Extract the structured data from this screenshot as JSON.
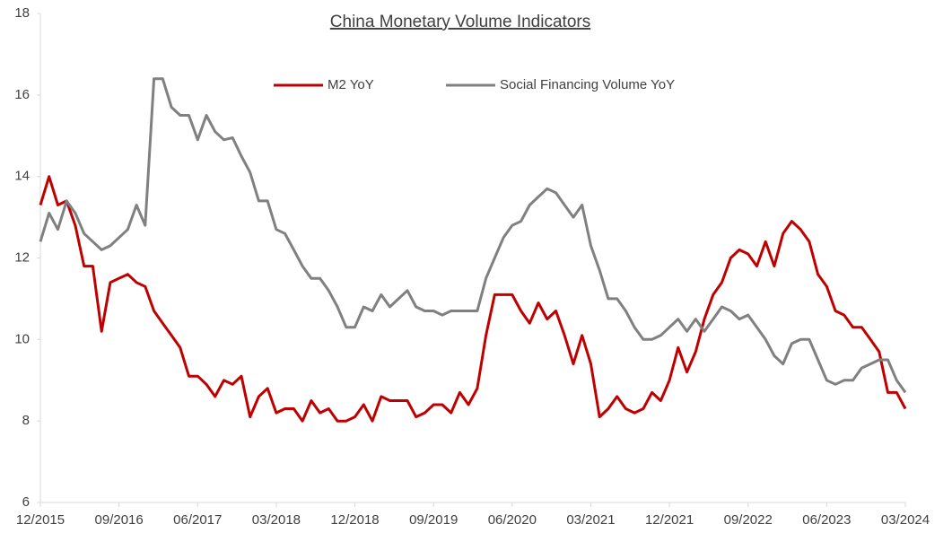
{
  "chart_data": {
    "type": "line",
    "title": "China Monetary Volume Indicators",
    "categories": [
      "12/2015",
      null,
      null,
      null,
      null,
      null,
      null,
      null,
      null,
      "09/2016",
      null,
      null,
      null,
      null,
      null,
      null,
      null,
      null,
      "06/2017",
      null,
      null,
      null,
      null,
      null,
      null,
      null,
      null,
      "03/2018",
      null,
      null,
      null,
      null,
      null,
      null,
      null,
      null,
      "12/2018",
      null,
      null,
      null,
      null,
      null,
      null,
      null,
      null,
      "09/2019",
      null,
      null,
      null,
      null,
      null,
      null,
      null,
      null,
      "06/2020",
      null,
      null,
      null,
      null,
      null,
      null,
      null,
      null,
      "03/2021",
      null,
      null,
      null,
      null,
      null,
      null,
      null,
      null,
      "12/2021",
      null,
      null,
      null,
      null,
      null,
      null,
      null,
      null,
      "09/2022",
      null,
      null,
      null,
      null,
      null,
      null,
      null,
      null,
      "06/2023",
      null,
      null,
      null,
      null,
      null,
      null,
      null,
      null,
      "03/2024"
    ],
    "series": [
      {
        "name": "M2 YoY",
        "color": "#c00000",
        "values": [
          13.3,
          14.0,
          13.3,
          13.4,
          12.8,
          11.8,
          11.8,
          10.2,
          11.4,
          11.5,
          11.6,
          11.4,
          11.3,
          10.7,
          10.4,
          10.1,
          9.8,
          9.1,
          9.1,
          8.9,
          8.6,
          9.0,
          8.9,
          9.1,
          8.1,
          8.6,
          8.8,
          8.2,
          8.3,
          8.3,
          8.0,
          8.5,
          8.2,
          8.3,
          8.0,
          8.0,
          8.1,
          8.4,
          8.0,
          8.6,
          8.5,
          8.5,
          8.5,
          8.1,
          8.2,
          8.4,
          8.4,
          8.2,
          8.7,
          8.4,
          8.8,
          10.1,
          11.1,
          11.1,
          11.1,
          10.7,
          10.4,
          10.9,
          10.5,
          10.7,
          10.1,
          9.4,
          10.1,
          9.4,
          8.1,
          8.3,
          8.6,
          8.3,
          8.2,
          8.3,
          8.7,
          8.5,
          9.0,
          9.8,
          9.2,
          9.7,
          10.5,
          11.1,
          11.4,
          12.0,
          12.2,
          12.1,
          11.8,
          12.4,
          11.8,
          12.6,
          12.9,
          12.7,
          12.4,
          11.6,
          11.3,
          10.7,
          10.6,
          10.3,
          10.3,
          10.0,
          9.7,
          8.7,
          8.7,
          8.3
        ]
      },
      {
        "name": "Social Financing Volume YoY",
        "color": "#808080",
        "values": [
          12.4,
          13.1,
          12.7,
          13.4,
          13.1,
          12.6,
          12.4,
          12.2,
          12.3,
          12.5,
          12.7,
          13.3,
          12.8,
          16.4,
          16.4,
          15.7,
          15.5,
          15.5,
          14.9,
          15.5,
          15.1,
          14.9,
          14.95,
          14.5,
          14.1,
          13.4,
          13.4,
          12.7,
          12.6,
          12.2,
          11.8,
          11.5,
          11.5,
          11.2,
          10.8,
          10.3,
          10.3,
          10.8,
          10.7,
          11.1,
          10.8,
          11.0,
          11.2,
          10.8,
          10.7,
          10.7,
          10.6,
          10.7,
          10.7,
          10.7,
          10.7,
          11.5,
          12.0,
          12.5,
          12.8,
          12.9,
          13.3,
          13.5,
          13.7,
          13.6,
          13.3,
          13.0,
          13.3,
          12.3,
          11.7,
          11.0,
          11.0,
          10.7,
          10.3,
          10.0,
          10.0,
          10.1,
          10.3,
          10.5,
          10.2,
          10.5,
          10.2,
          10.5,
          10.8,
          10.7,
          10.5,
          10.6,
          10.3,
          10.0,
          9.6,
          9.4,
          9.9,
          10.0,
          10.0,
          9.5,
          9.0,
          8.9,
          9.0,
          9.0,
          9.3,
          9.4,
          9.5,
          9.5,
          9.0,
          8.7
        ]
      }
    ],
    "ylim": [
      6,
      18
    ],
    "yticks": [
      6,
      8,
      10,
      12,
      14,
      16,
      18
    ],
    "grid": false,
    "legend": "top"
  }
}
